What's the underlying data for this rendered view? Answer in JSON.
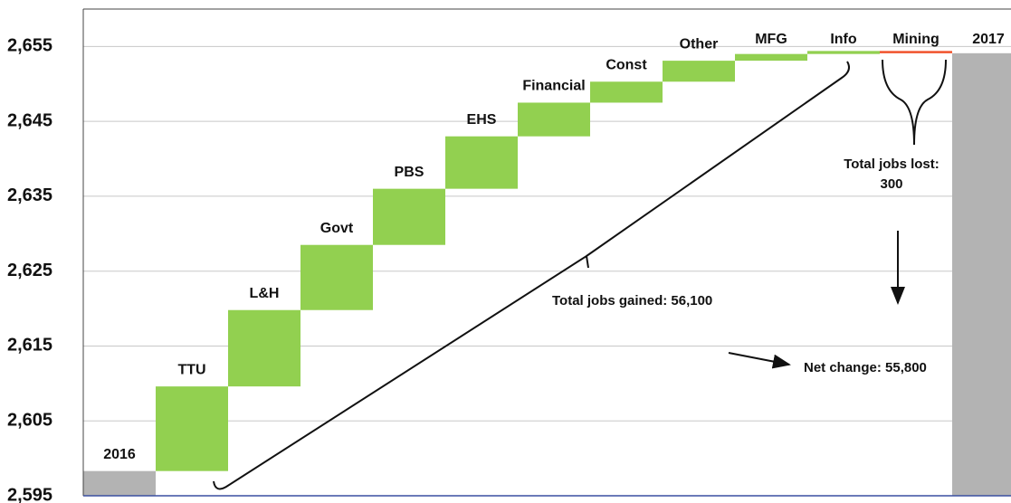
{
  "chart_data": {
    "type": "waterfall",
    "categories": [
      "2016",
      "TTU",
      "L&H",
      "Govt",
      "PBS",
      "EHS",
      "Financial",
      "Const",
      "Other",
      "MFG",
      "Info",
      "Mining",
      "2017"
    ],
    "values": [
      2598.3,
      11.3,
      10.2,
      8.7,
      7.5,
      7.0,
      4.5,
      2.8,
      2.8,
      0.9,
      0.4,
      -0.3,
      2654.1
    ],
    "color": "#92d050",
    "total_color": "#b3b3b3",
    "negative_color": "#f0522b",
    "ylim": [
      2595,
      2660
    ],
    "yticks": [
      {
        "value": 2595,
        "label": "2,595"
      },
      {
        "value": 2605,
        "label": "2,605"
      },
      {
        "value": 2615,
        "label": "2,615"
      },
      {
        "value": 2625,
        "label": "2,625"
      },
      {
        "value": 2635,
        "label": "2,635"
      },
      {
        "value": 2645,
        "label": "2,645"
      },
      {
        "value": 2655,
        "label": "2,655"
      }
    ],
    "grid": true,
    "annotations": [
      "Total jobs gained: 56,100",
      "Total jobs lost: 300",
      "Net change: 55,800"
    ]
  }
}
